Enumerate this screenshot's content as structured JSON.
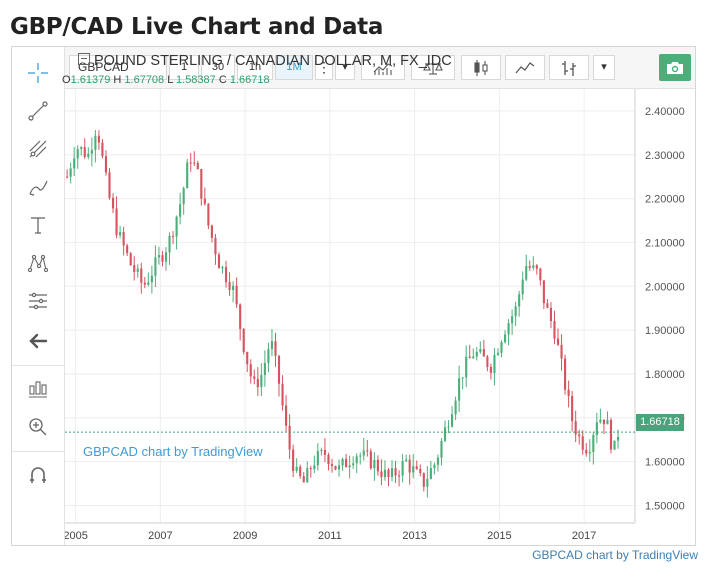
{
  "page": {
    "title": "GBP/CAD Live Chart and Data"
  },
  "toolbar": {
    "symbol": "GBPCAD",
    "intervals": [
      "1",
      "30",
      "1h",
      "1M"
    ],
    "active_interval": "1M",
    "more_glyph": "⋮",
    "dropdown_glyph": "▾"
  },
  "left_tools": [
    "crosshair-icon",
    "trend-line-icon",
    "pitchfork-icon",
    "brush-icon",
    "text-tool-icon",
    "pattern-icon",
    "fib-icon",
    "back-arrow-icon",
    "measure-icon",
    "zoom-in-icon",
    "magnet-icon"
  ],
  "legend": {
    "title": "POUND STERLING / CANADIAN DOLLAR, M, FX_IDC",
    "o_label": "O",
    "o_value": "1.61379",
    "h_label": "H",
    "h_value": "1.67708",
    "l_label": "L",
    "l_value": "1.58387",
    "c_label": "C",
    "c_value": "1.66718"
  },
  "watermark": "GBPCAD chart by TradingView",
  "footer_credit": "GBPCAD chart by TradingView",
  "colors": {
    "up": "#4caf7a",
    "down": "#d6545f",
    "accent": "#3d9bd6",
    "price_line": "#4aa37a"
  },
  "chart_data": {
    "type": "candlestick",
    "x_tick_labels": [
      "2005",
      "2007",
      "2009",
      "2011",
      "2013",
      "2015",
      "2017"
    ],
    "y_tick_labels": [
      "2.40000",
      "2.30000",
      "2.20000",
      "2.10000",
      "2.00000",
      "1.90000",
      "1.80000",
      "1.70000",
      "1.60000",
      "1.50000"
    ],
    "ylim": [
      1.46,
      2.45
    ],
    "xlim": [
      2004.75,
      2018.2
    ],
    "last_price": "1.66718",
    "grid": true,
    "approx_close_path": [
      [
        2004.8,
        2.25
      ],
      [
        2005.0,
        2.32
      ],
      [
        2005.3,
        2.3
      ],
      [
        2005.5,
        2.37
      ],
      [
        2005.75,
        2.22
      ],
      [
        2006.0,
        2.12
      ],
      [
        2006.3,
        2.05
      ],
      [
        2006.6,
        2.0
      ],
      [
        2006.9,
        2.05
      ],
      [
        2007.2,
        2.1
      ],
      [
        2007.5,
        2.2
      ],
      [
        2007.7,
        2.3
      ],
      [
        2007.9,
        2.25
      ],
      [
        2008.1,
        2.15
      ],
      [
        2008.4,
        2.05
      ],
      [
        2008.7,
        2.0
      ],
      [
        2009.0,
        1.85
      ],
      [
        2009.2,
        1.77
      ],
      [
        2009.4,
        1.8
      ],
      [
        2009.6,
        1.88
      ],
      [
        2009.8,
        1.78
      ],
      [
        2010.0,
        1.65
      ],
      [
        2010.2,
        1.57
      ],
      [
        2010.4,
        1.55
      ],
      [
        2010.6,
        1.6
      ],
      [
        2010.9,
        1.62
      ],
      [
        2011.2,
        1.58
      ],
      [
        2011.6,
        1.62
      ],
      [
        2012.0,
        1.6
      ],
      [
        2012.4,
        1.56
      ],
      [
        2012.8,
        1.6
      ],
      [
        2013.2,
        1.55
      ],
      [
        2013.5,
        1.6
      ],
      [
        2013.8,
        1.7
      ],
      [
        2014.1,
        1.8
      ],
      [
        2014.4,
        1.85
      ],
      [
        2014.8,
        1.82
      ],
      [
        2015.1,
        1.9
      ],
      [
        2015.4,
        1.95
      ],
      [
        2015.6,
        2.05
      ],
      [
        2015.9,
        2.03
      ],
      [
        2016.1,
        1.95
      ],
      [
        2016.3,
        1.9
      ],
      [
        2016.5,
        1.8
      ],
      [
        2016.7,
        1.7
      ],
      [
        2016.9,
        1.65
      ],
      [
        2017.1,
        1.63
      ],
      [
        2017.3,
        1.7
      ],
      [
        2017.5,
        1.7
      ],
      [
        2017.7,
        1.62
      ],
      [
        2017.8,
        1.6672
      ]
    ]
  }
}
